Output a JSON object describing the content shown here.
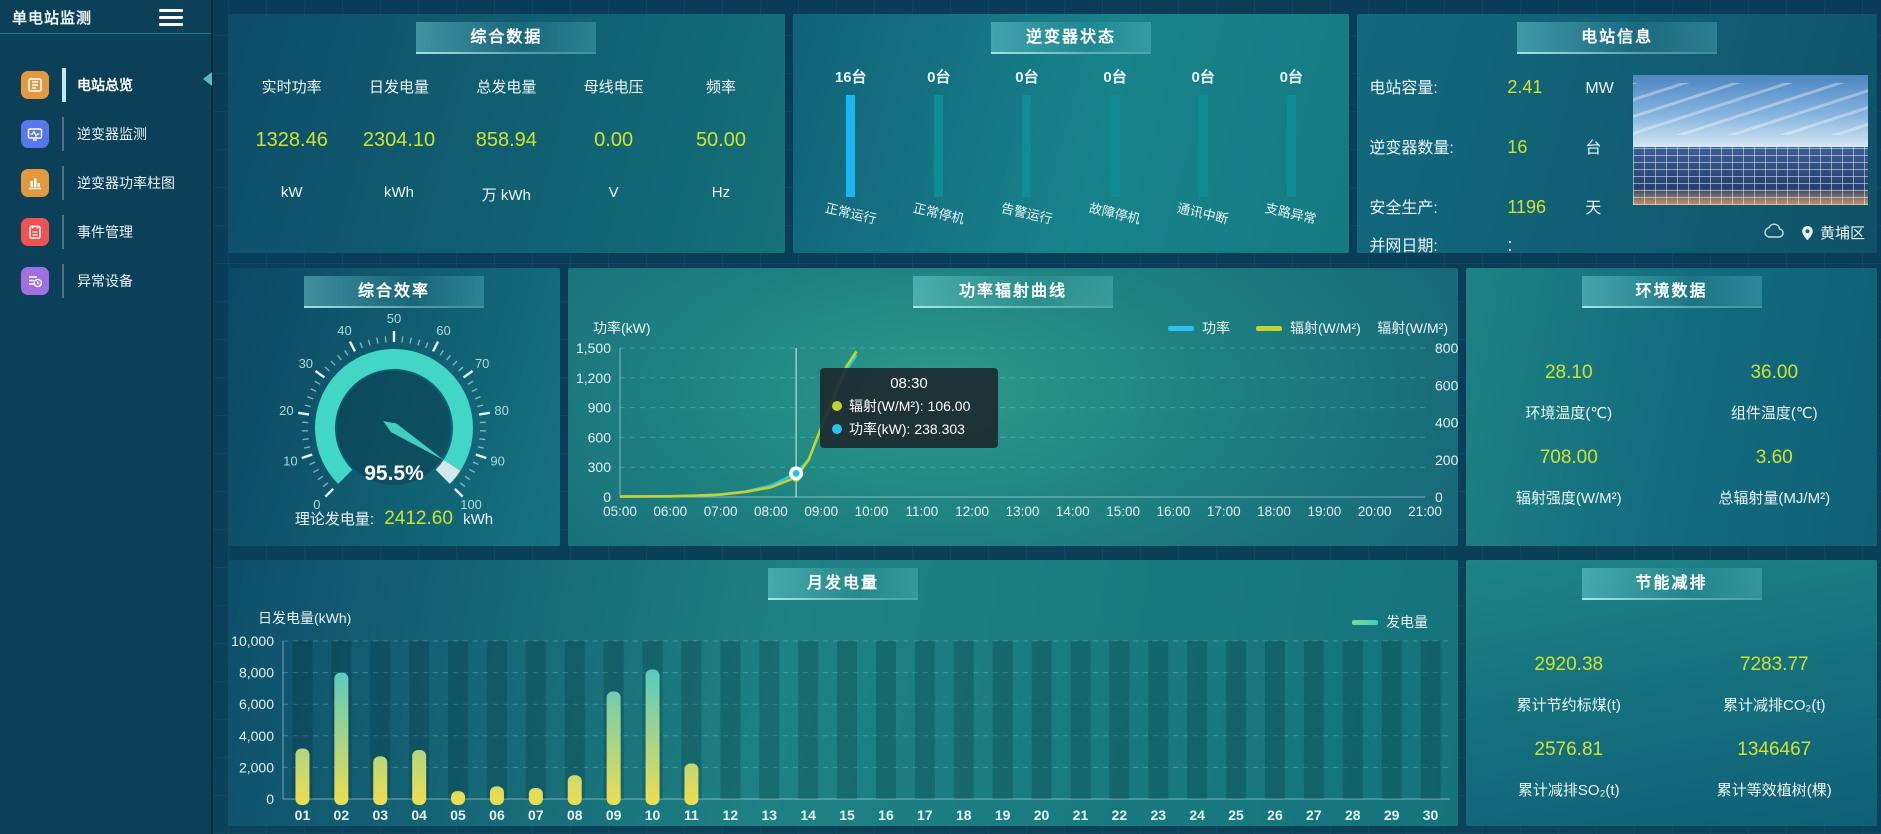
{
  "app": {
    "title": "单电站监测"
  },
  "sidebar": {
    "items": [
      {
        "label": "电站总览",
        "active": true
      },
      {
        "label": "逆变器监测",
        "active": false
      },
      {
        "label": "逆变器功率柱图",
        "active": false
      },
      {
        "label": "事件管理",
        "active": false
      },
      {
        "label": "异常设备",
        "active": false
      }
    ]
  },
  "summary": {
    "title": "综合数据",
    "items": [
      {
        "label": "实时功率",
        "value": "1328.46",
        "unit": "kW"
      },
      {
        "label": "日发电量",
        "value": "2304.10",
        "unit": "kWh"
      },
      {
        "label": "总发电量",
        "value": "858.94",
        "unit": "万 kWh"
      },
      {
        "label": "母线电压",
        "value": "0.00",
        "unit": "V"
      },
      {
        "label": "频率",
        "value": "50.00",
        "unit": "Hz"
      }
    ]
  },
  "inverter_status": {
    "title": "逆变器状态",
    "items": [
      {
        "count": "16台",
        "label": "正常运行",
        "highlight": true
      },
      {
        "count": "0台",
        "label": "正常停机",
        "highlight": false
      },
      {
        "count": "0台",
        "label": "告警运行",
        "highlight": false
      },
      {
        "count": "0台",
        "label": "故障停机",
        "highlight": false
      },
      {
        "count": "0台",
        "label": "通讯中断",
        "highlight": false
      },
      {
        "count": "0台",
        "label": "支路异常",
        "highlight": false
      }
    ]
  },
  "station_info": {
    "title": "电站信息",
    "rows": [
      {
        "label": "电站容量:",
        "value": "2.41",
        "unit": "MW"
      },
      {
        "label": "逆变器数量:",
        "value": "16",
        "unit": "台"
      },
      {
        "label": "安全生产:",
        "value": "1196",
        "unit": "天"
      },
      {
        "label": "并网日期:",
        "value": ":",
        "unit": ""
      }
    ],
    "location": "黄埔区"
  },
  "efficiency": {
    "title": "综合效率",
    "theory_label": "理论发电量:",
    "theory_value": "2412.60",
    "theory_unit": "kWh"
  },
  "power_curve": {
    "title": "功率辐射曲线",
    "tooltip": {
      "time": "08:30",
      "lines": [
        {
          "text": "辐射(W/M²): 106.00"
        },
        {
          "text": "功率(kW): 238.303"
        }
      ]
    }
  },
  "env": {
    "title": "环境数据",
    "cells": [
      {
        "value": "28.10",
        "label": "环境温度(℃)"
      },
      {
        "value": "36.00",
        "label": "组件温度(℃)"
      },
      {
        "value": "708.00",
        "label": "辐射强度(W/M²)"
      },
      {
        "value": "3.60",
        "label": "总辐射量(MJ/M²)"
      }
    ]
  },
  "monthly": {
    "title": "月发电量"
  },
  "saving": {
    "title": "节能减排",
    "cells": [
      {
        "value": "2920.38",
        "label": "累计节约标煤(t)"
      },
      {
        "value": "7283.77",
        "label": "累计减排CO₂(t)"
      },
      {
        "value": "2576.81",
        "label": "累计减排SO₂(t)"
      },
      {
        "value": "1346467",
        "label": "累计等效植树(棵)"
      }
    ]
  },
  "chart_data": [
    {
      "type": "line",
      "title": "功率辐射曲线",
      "x_ticks": [
        "05:00",
        "06:00",
        "07:00",
        "08:00",
        "09:00",
        "10:00",
        "11:00",
        "12:00",
        "13:00",
        "14:00",
        "15:00",
        "16:00",
        "17:00",
        "18:00",
        "19:00",
        "20:00",
        "21:00"
      ],
      "x_range": [
        5,
        21
      ],
      "left_axis": {
        "name": "功率(kW)",
        "min": 0,
        "max": 1500,
        "step": 300
      },
      "right_axis": {
        "name": "辐射(W/M²)",
        "min": 0,
        "max": 800,
        "step": 200
      },
      "legend_position": "top-center-right",
      "grid": true,
      "series": [
        {
          "name": "功率",
          "color": "#2ac2ee",
          "axis": "left",
          "points": [
            [
              5,
              4
            ],
            [
              5.5,
              5
            ],
            [
              6,
              7
            ],
            [
              6.5,
              12
            ],
            [
              7,
              25
            ],
            [
              7.5,
              55
            ],
            [
              8,
              115
            ],
            [
              8.5,
              238.303
            ],
            [
              8.75,
              380
            ],
            [
              9,
              700
            ],
            [
              9.25,
              990
            ],
            [
              9.5,
              1280
            ],
            [
              9.7,
              1430
            ]
          ]
        },
        {
          "name": "辐射(W/M²)",
          "color": "#c3d32b",
          "axis": "right",
          "points": [
            [
              5,
              2
            ],
            [
              5.5,
              3
            ],
            [
              6,
              4
            ],
            [
              6.5,
              7
            ],
            [
              7,
              13
            ],
            [
              7.5,
              28
            ],
            [
              8,
              52
            ],
            [
              8.5,
              106
            ],
            [
              8.75,
              200
            ],
            [
              9,
              375
            ],
            [
              9.25,
              540
            ],
            [
              9.5,
              700
            ],
            [
              9.7,
              782
            ]
          ]
        }
      ],
      "marker": {
        "x": 8.5,
        "power": 238.303,
        "radiation": 106
      },
      "crosshair_x": 8.5
    },
    {
      "type": "bar",
      "title": "月发电量",
      "ylabel": "日发电量(kWh)",
      "categories": [
        "01",
        "02",
        "03",
        "04",
        "05",
        "06",
        "07",
        "08",
        "09",
        "10",
        "11",
        "12",
        "13",
        "14",
        "15",
        "16",
        "17",
        "18",
        "19",
        "20",
        "21",
        "22",
        "23",
        "24",
        "25",
        "26",
        "27",
        "28",
        "29",
        "30"
      ],
      "values": [
        3200,
        8000,
        2700,
        3100,
        500,
        800,
        700,
        1500,
        6800,
        8200,
        2250,
        0,
        0,
        0,
        0,
        0,
        0,
        0,
        0,
        0,
        0,
        0,
        0,
        0,
        0,
        0,
        0,
        0,
        0,
        0
      ],
      "ylim": [
        0,
        10000
      ],
      "ystep": 2000,
      "legend": "发电量",
      "grid": true,
      "bar_color_top": "#38c6d8",
      "bar_color_bottom": "#e9dd55"
    },
    {
      "type": "gauge",
      "title": "综合效率",
      "value": 95.5,
      "value_label": "95.5%",
      "min": 0,
      "max": 100,
      "label_step": 10,
      "color": "#42d6c6"
    }
  ]
}
